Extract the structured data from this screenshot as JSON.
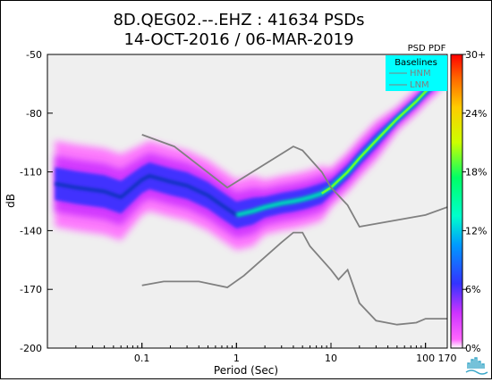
{
  "title_line1": "8D.QEG02.--.EHZ : 41634 PSDs",
  "title_line2": "14-OCT-2016 / 06-MAR-2019",
  "colorbar_title": "PSD PDF",
  "legend": {
    "title": "Baselines",
    "items": [
      "HNM",
      "LNM"
    ],
    "background": "#00ffff"
  },
  "colors": {
    "plot_background": "#efefef",
    "baseline_line": "#808080"
  },
  "chart_data": {
    "type": "heatmap",
    "xlabel": "Period (Sec)",
    "ylabel": "dB",
    "x_scale": "log",
    "xlim": [
      0.01,
      170
    ],
    "ylim": [
      -200,
      -50
    ],
    "x_ticks": [
      {
        "value": 0.1,
        "label": "0.1"
      },
      {
        "value": 1,
        "label": "1"
      },
      {
        "value": 10,
        "label": "10"
      },
      {
        "value": 100,
        "label": "100"
      },
      {
        "value": 170,
        "label": "170"
      }
    ],
    "y_ticks": [
      -50,
      -80,
      -110,
      -140,
      -170,
      -200
    ],
    "colorbar": {
      "ticks": [
        "0%",
        "6%",
        "12%",
        "18%",
        "24%",
        "30+"
      ],
      "range_percent": [
        0,
        30
      ]
    },
    "series": [
      {
        "name": "HNM",
        "points": [
          [
            0.1,
            -91
          ],
          [
            0.22,
            -97
          ],
          [
            0.8,
            -118
          ],
          [
            4,
            -97
          ],
          [
            5,
            -99
          ],
          [
            8,
            -110
          ],
          [
            10,
            -118
          ],
          [
            15,
            -127
          ],
          [
            20,
            -138
          ],
          [
            100,
            -132
          ],
          [
            170,
            -128
          ]
        ]
      },
      {
        "name": "LNM",
        "points": [
          [
            0.1,
            -168
          ],
          [
            0.17,
            -166
          ],
          [
            0.4,
            -166
          ],
          [
            0.8,
            -169
          ],
          [
            1.2,
            -163
          ],
          [
            3,
            -146
          ],
          [
            4,
            -141
          ],
          [
            5,
            -141
          ],
          [
            6,
            -148
          ],
          [
            10,
            -160
          ],
          [
            12,
            -165
          ],
          [
            15,
            -160
          ],
          [
            20,
            -177
          ],
          [
            30,
            -186
          ],
          [
            50,
            -188
          ],
          [
            80,
            -187
          ],
          [
            100,
            -185
          ],
          [
            170,
            -185
          ]
        ]
      }
    ],
    "mode_curve": [
      [
        0.012,
        -116
      ],
      [
        0.02,
        -118
      ],
      [
        0.04,
        -120
      ],
      [
        0.06,
        -123
      ],
      [
        0.1,
        -114
      ],
      [
        0.12,
        -112
      ],
      [
        0.2,
        -115
      ],
      [
        0.3,
        -117
      ],
      [
        0.5,
        -122
      ],
      [
        0.7,
        -127
      ],
      [
        1,
        -132
      ],
      [
        1.5,
        -130
      ],
      [
        2,
        -128
      ],
      [
        3,
        -126
      ],
      [
        4,
        -125
      ],
      [
        5,
        -124
      ],
      [
        6,
        -123
      ],
      [
        8,
        -121
      ],
      [
        10,
        -118
      ],
      [
        15,
        -110
      ],
      [
        20,
        -103
      ],
      [
        30,
        -94
      ],
      [
        50,
        -83
      ],
      [
        80,
        -74
      ],
      [
        100,
        -69
      ],
      [
        130,
        -64
      ],
      [
        170,
        -56
      ]
    ]
  }
}
